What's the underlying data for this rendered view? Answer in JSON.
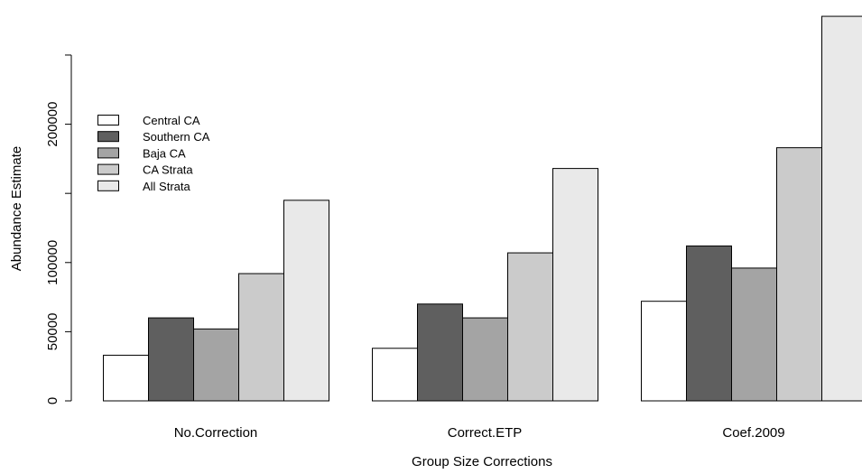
{
  "chart_data": {
    "type": "bar",
    "title": "",
    "xlabel": "Group Size Corrections",
    "ylabel": "Abundance Estimate",
    "ylim": [
      0,
      280000
    ],
    "yticks": [
      {
        "value": 0,
        "label": "0"
      },
      {
        "value": 50000,
        "label": "50000"
      },
      {
        "value": 100000,
        "label": "100000"
      },
      {
        "value": 200000,
        "label": "200000"
      }
    ],
    "y_axis_extent": [
      0,
      250000
    ],
    "grid": false,
    "legend_position": "top-left",
    "categories": [
      "No.Correction",
      "Correct.ETP",
      "Coef.2009"
    ],
    "series": [
      {
        "name": "Central CA",
        "color": "#ffffff",
        "values": [
          33000,
          38000,
          72000
        ]
      },
      {
        "name": "Southern CA",
        "color": "#5f5f5f",
        "values": [
          60000,
          70000,
          112000
        ]
      },
      {
        "name": "Baja CA",
        "color": "#a4a4a4",
        "values": [
          52000,
          60000,
          96000
        ]
      },
      {
        "name": "CA Strata",
        "color": "#cbcbcb",
        "values": [
          92000,
          107000,
          183000
        ]
      },
      {
        "name": "All Strata",
        "color": "#e9e9e9",
        "values": [
          145000,
          168000,
          278000
        ]
      }
    ]
  }
}
